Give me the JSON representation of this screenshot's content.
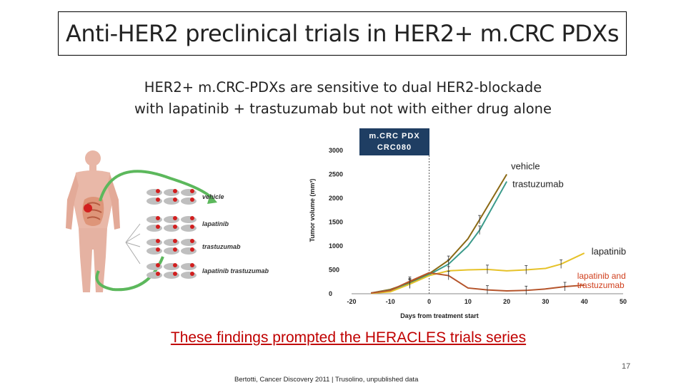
{
  "slide": {
    "title": "Anti-HER2 preclinical trials in HER2+ m.CRC PDXs",
    "subtitle_line1": "HER2+ m.CRC-PDXs are sensitive to dual HER2-blockade",
    "subtitle_line2": "with lapatinib + trastuzumab but not with either drug alone",
    "link_text": "These findings prompted the HERACLES trials series",
    "page_number": "17",
    "citation": "Bertotti, Cancer Discovery 2011 | Trusolino, unpublished data"
  },
  "illustration": {
    "groups": [
      "vehicle",
      "lapatinib",
      "trastuzumab",
      "lapatinib trastuzumab"
    ]
  },
  "chart_data": {
    "type": "line",
    "badge_line1": "m.CRC PDX",
    "badge_line2": "CRC080",
    "xlabel": "Days from treatment start",
    "ylabel": "Tumor volume (mm³)",
    "xlim": [
      -20,
      50
    ],
    "ylim": [
      0,
      3000
    ],
    "x_ticks": [
      -20,
      -10,
      0,
      10,
      20,
      30,
      40,
      50
    ],
    "y_ticks": [
      0,
      500,
      1000,
      1500,
      2000,
      2500,
      3000
    ],
    "treatment_start_day": 0,
    "series": [
      {
        "name": "vehicle",
        "color": "#8b6914",
        "label_color": "#222222",
        "x": [
          -15,
          -10,
          -5,
          0,
          5,
          10,
          13,
          20
        ],
        "y": [
          15,
          90,
          230,
          420,
          700,
          1150,
          1550,
          2500
        ]
      },
      {
        "name": "trastuzumab",
        "color": "#3a9a8a",
        "label_color": "#222222",
        "x": [
          -15,
          -10,
          -5,
          0,
          5,
          10,
          13,
          20
        ],
        "y": [
          15,
          75,
          210,
          400,
          620,
          1000,
          1330,
          2350
        ]
      },
      {
        "name": "lapatinib",
        "color": "#e6c229",
        "label_color": "#222222",
        "x": [
          -15,
          -10,
          -5,
          0,
          5,
          10,
          15,
          20,
          25,
          30,
          34,
          40
        ],
        "y": [
          10,
          40,
          200,
          380,
          480,
          500,
          510,
          480,
          500,
          530,
          620,
          850
        ]
      },
      {
        "name": "lapatinib and trastuzumab",
        "color": "#b5542b",
        "label_color": "#d0401e",
        "x": [
          -15,
          -10,
          -5,
          0,
          5,
          10,
          15,
          20,
          25,
          30,
          35,
          40
        ],
        "y": [
          15,
          70,
          260,
          440,
          380,
          120,
          80,
          60,
          70,
          100,
          150,
          180
        ]
      }
    ]
  }
}
